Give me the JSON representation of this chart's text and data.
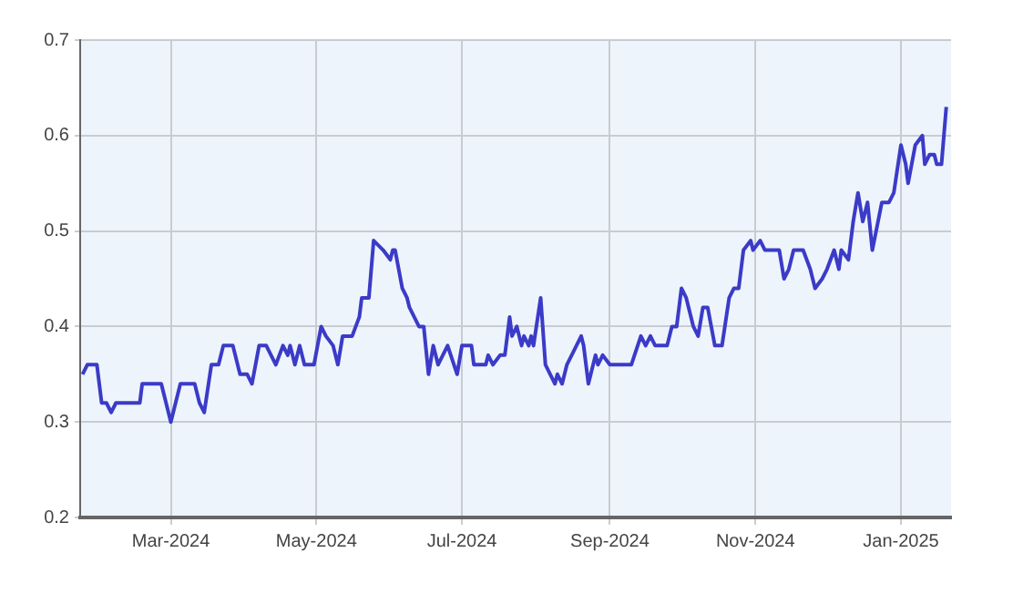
{
  "chart_data": {
    "type": "line",
    "x": [
      "2024-01-24",
      "2024-01-26",
      "2024-01-30",
      "2024-02-01",
      "2024-02-03",
      "2024-02-05",
      "2024-02-07",
      "2024-02-17",
      "2024-02-18",
      "2024-02-26",
      "2024-02-28",
      "2024-03-01",
      "2024-03-05",
      "2024-03-11",
      "2024-03-13",
      "2024-03-15",
      "2024-03-18",
      "2024-03-21",
      "2024-03-23",
      "2024-03-27",
      "2024-03-30",
      "2024-04-02",
      "2024-04-04",
      "2024-04-07",
      "2024-04-10",
      "2024-04-14",
      "2024-04-17",
      "2024-04-19",
      "2024-04-20",
      "2024-04-22",
      "2024-04-24",
      "2024-04-26",
      "2024-04-30",
      "2024-05-03",
      "2024-05-05",
      "2024-05-08",
      "2024-05-10",
      "2024-05-12",
      "2024-05-16",
      "2024-05-19",
      "2024-05-20",
      "2024-05-23",
      "2024-05-25",
      "2024-05-29",
      "2024-06-01",
      "2024-06-02",
      "2024-06-03",
      "2024-06-06",
      "2024-06-08",
      "2024-06-09",
      "2024-06-13",
      "2024-06-15",
      "2024-06-17",
      "2024-06-19",
      "2024-06-21",
      "2024-06-25",
      "2024-06-29",
      "2024-07-01",
      "2024-07-05",
      "2024-07-06",
      "2024-07-11",
      "2024-07-12",
      "2024-07-14",
      "2024-07-17",
      "2024-07-19",
      "2024-07-21",
      "2024-07-22",
      "2024-07-24",
      "2024-07-26",
      "2024-07-27",
      "2024-07-29",
      "2024-07-30",
      "2024-07-31",
      "2024-08-03",
      "2024-08-05",
      "2024-08-09",
      "2024-08-10",
      "2024-08-12",
      "2024-08-14",
      "2024-08-18",
      "2024-08-20",
      "2024-08-21",
      "2024-08-23",
      "2024-08-26",
      "2024-08-27",
      "2024-08-29",
      "2024-09-01",
      "2024-09-10",
      "2024-09-14",
      "2024-09-16",
      "2024-09-18",
      "2024-09-20",
      "2024-09-25",
      "2024-09-27",
      "2024-09-29",
      "2024-10-01",
      "2024-10-03",
      "2024-10-06",
      "2024-10-08",
      "2024-10-10",
      "2024-10-12",
      "2024-10-15",
      "2024-10-18",
      "2024-10-21",
      "2024-10-23",
      "2024-10-25",
      "2024-10-27",
      "2024-10-30",
      "2024-10-31",
      "2024-11-03",
      "2024-11-05",
      "2024-11-11",
      "2024-11-13",
      "2024-11-15",
      "2024-11-17",
      "2024-11-21",
      "2024-11-24",
      "2024-11-26",
      "2024-11-29",
      "2024-12-01",
      "2024-12-04",
      "2024-12-06",
      "2024-12-07",
      "2024-12-10",
      "2024-12-12",
      "2024-12-14",
      "2024-12-16",
      "2024-12-18",
      "2024-12-20",
      "2024-12-24",
      "2024-12-27",
      "2024-12-29",
      "2025-01-01",
      "2025-01-03",
      "2025-01-04",
      "2025-01-07",
      "2025-01-10",
      "2025-01-11",
      "2025-01-13",
      "2025-01-15",
      "2025-01-16",
      "2025-01-18",
      "2025-01-20"
    ],
    "series": [
      {
        "color": "#3b3bc8",
        "values": [
          0.35,
          0.36,
          0.36,
          0.32,
          0.32,
          0.31,
          0.32,
          0.32,
          0.34,
          0.34,
          0.32,
          0.3,
          0.34,
          0.34,
          0.32,
          0.31,
          0.36,
          0.36,
          0.38,
          0.38,
          0.35,
          0.35,
          0.34,
          0.38,
          0.38,
          0.36,
          0.38,
          0.37,
          0.38,
          0.36,
          0.38,
          0.36,
          0.36,
          0.4,
          0.39,
          0.38,
          0.36,
          0.39,
          0.39,
          0.41,
          0.43,
          0.43,
          0.49,
          0.48,
          0.47,
          0.48,
          0.48,
          0.44,
          0.43,
          0.42,
          0.4,
          0.4,
          0.35,
          0.38,
          0.36,
          0.38,
          0.35,
          0.38,
          0.38,
          0.36,
          0.36,
          0.37,
          0.36,
          0.37,
          0.37,
          0.41,
          0.39,
          0.4,
          0.38,
          0.39,
          0.38,
          0.39,
          0.38,
          0.43,
          0.36,
          0.34,
          0.35,
          0.34,
          0.36,
          0.38,
          0.39,
          0.38,
          0.34,
          0.37,
          0.36,
          0.37,
          0.36,
          0.36,
          0.39,
          0.38,
          0.39,
          0.38,
          0.38,
          0.4,
          0.4,
          0.44,
          0.43,
          0.4,
          0.39,
          0.42,
          0.42,
          0.38,
          0.38,
          0.43,
          0.44,
          0.44,
          0.48,
          0.49,
          0.48,
          0.49,
          0.48,
          0.48,
          0.45,
          0.46,
          0.48,
          0.48,
          0.46,
          0.44,
          0.45,
          0.46,
          0.48,
          0.46,
          0.48,
          0.47,
          0.51,
          0.54,
          0.51,
          0.53,
          0.48,
          0.53,
          0.53,
          0.54,
          0.59,
          0.57,
          0.55,
          0.59,
          0.6,
          0.57,
          0.58,
          0.58,
          0.57,
          0.57,
          0.63
        ]
      }
    ],
    "xlim": [
      "2024-01-23",
      "2025-01-22"
    ],
    "xticks": [
      {
        "value": "2024-03-01",
        "label": "Mar-2024"
      },
      {
        "value": "2024-05-01",
        "label": "May-2024"
      },
      {
        "value": "2024-07-01",
        "label": "Jul-2024"
      },
      {
        "value": "2024-09-01",
        "label": "Sep-2024"
      },
      {
        "value": "2024-11-01",
        "label": "Nov-2024"
      },
      {
        "value": "2025-01-01",
        "label": "Jan-2025"
      }
    ],
    "ylim": [
      0.2,
      0.7
    ],
    "yticks": [
      0.2,
      0.3,
      0.4,
      0.5,
      0.6,
      0.7
    ],
    "grid": true,
    "legend": false,
    "marker": "none",
    "line_style": "solid"
  }
}
